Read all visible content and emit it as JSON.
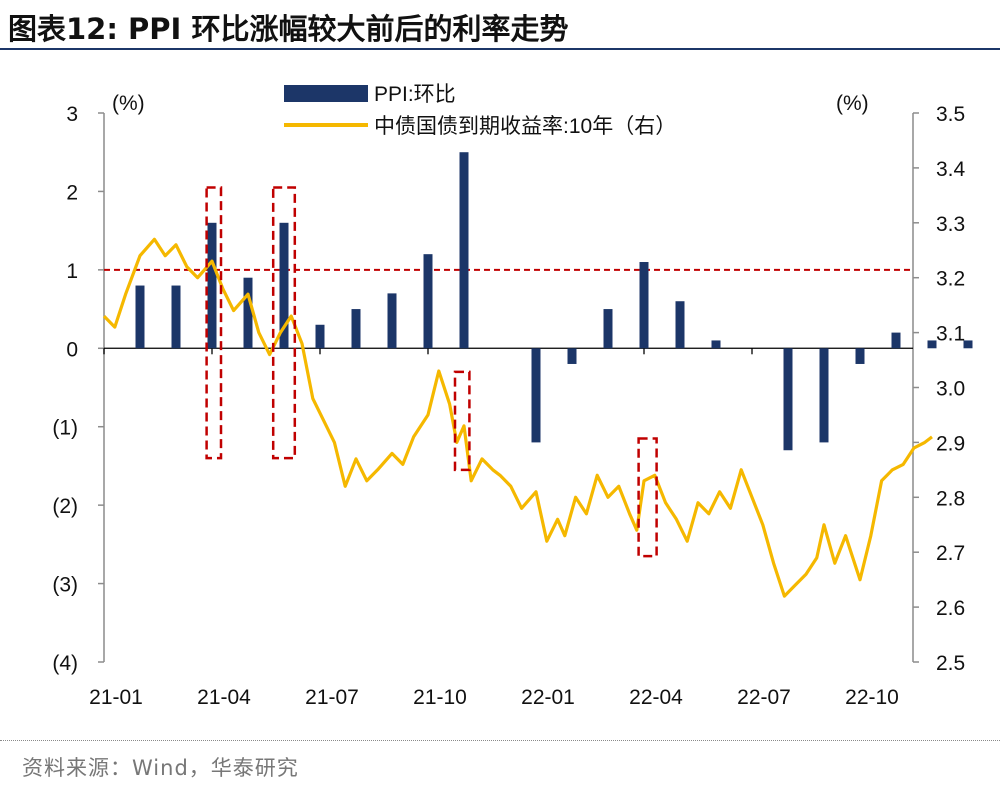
{
  "title": "图表12:  PPI 环比涨幅较大前后的利率走势",
  "source": "资料来源：Wind，华泰研究",
  "colors": {
    "bar": "#1c3668",
    "line": "#f5b800",
    "reference_line": "#c00000",
    "highlight_box": "#c00000",
    "axis": "#8c8c8c",
    "text": "#111111"
  },
  "chart_data": {
    "type": "bar+line",
    "left_axis": {
      "unit": "(%)",
      "ylim": [
        -4,
        3
      ],
      "ticks": [
        3,
        2,
        1,
        0,
        -1,
        -2,
        -3,
        -4
      ],
      "tick_labels": [
        "3",
        "2",
        "1",
        "0",
        "(1)",
        "(2)",
        "(3)",
        "(4)"
      ]
    },
    "right_axis": {
      "unit": "(%)",
      "ylim": [
        2.5,
        3.5
      ],
      "ticks": [
        3.5,
        3.4,
        3.3,
        3.2,
        3.1,
        3.0,
        2.9,
        2.8,
        2.7,
        2.6,
        2.5
      ],
      "tick_labels": [
        "3.5",
        "3.4",
        "3.3",
        "3.2",
        "3.1",
        "3.0",
        "2.9",
        "2.8",
        "2.7",
        "2.6",
        "2.5"
      ]
    },
    "x_ticks": [
      "21-01",
      "21-04",
      "21-07",
      "21-10",
      "22-01",
      "22-04",
      "22-07",
      "22-10"
    ],
    "x_tick_month_index": [
      0,
      3,
      6,
      9,
      12,
      15,
      18,
      21
    ],
    "legend": [
      "PPI:环比",
      "中债国债到期收益率:10年（右）"
    ],
    "series": [
      {
        "name": "PPI:环比",
        "type": "bar",
        "axis": "left",
        "months": [
          "21-01",
          "21-02",
          "21-03",
          "21-04",
          "21-05",
          "21-06",
          "21-07",
          "21-08",
          "21-09",
          "21-10",
          "21-11",
          "21-12",
          "22-01",
          "22-02",
          "22-03",
          "22-04",
          "22-05",
          "22-06",
          "22-07",
          "22-08",
          "22-09",
          "22-10",
          "22-11",
          "22-12"
        ],
        "values": [
          0.8,
          0.8,
          1.6,
          0.9,
          1.6,
          0.3,
          0.5,
          0.7,
          1.2,
          2.5,
          0.0,
          -1.2,
          -0.2,
          0.5,
          1.1,
          0.6,
          0.1,
          0.0,
          -1.3,
          -1.2,
          -0.2,
          0.2,
          0.1,
          0.1
        ]
      },
      {
        "name": "中债国债到期收益率:10年（右）",
        "type": "line",
        "axis": "right",
        "x_month": [
          0,
          0.3,
          0.6,
          1.0,
          1.4,
          1.7,
          2.0,
          2.3,
          2.6,
          3.0,
          3.3,
          3.6,
          4.0,
          4.3,
          4.6,
          4.9,
          5.2,
          5.5,
          5.8,
          6.1,
          6.4,
          6.7,
          7.0,
          7.3,
          7.6,
          8.0,
          8.3,
          8.6,
          9.0,
          9.3,
          9.6,
          9.8,
          10.0,
          10.2,
          10.5,
          10.8,
          11.0,
          11.3,
          11.6,
          12.0,
          12.3,
          12.6,
          12.8,
          13.1,
          13.4,
          13.7,
          14.0,
          14.3,
          14.6,
          14.8,
          15.0,
          15.3,
          15.6,
          15.9,
          16.2,
          16.5,
          16.8,
          17.1,
          17.4,
          17.7,
          18.0,
          18.3,
          18.6,
          18.9,
          19.2,
          19.5,
          19.8,
          20.0,
          20.3,
          20.6,
          21.0,
          21.3,
          21.6,
          21.9,
          22.2,
          22.5,
          22.8,
          23.0
        ],
        "values": [
          3.13,
          3.11,
          3.17,
          3.24,
          3.27,
          3.24,
          3.26,
          3.22,
          3.2,
          3.23,
          3.18,
          3.14,
          3.17,
          3.1,
          3.06,
          3.1,
          3.13,
          3.08,
          2.98,
          2.94,
          2.9,
          2.82,
          2.87,
          2.83,
          2.85,
          2.88,
          2.86,
          2.91,
          2.95,
          3.03,
          2.97,
          2.9,
          2.93,
          2.83,
          2.87,
          2.85,
          2.84,
          2.82,
          2.78,
          2.81,
          2.72,
          2.76,
          2.73,
          2.8,
          2.77,
          2.84,
          2.8,
          2.82,
          2.77,
          2.74,
          2.83,
          2.84,
          2.79,
          2.76,
          2.72,
          2.79,
          2.77,
          2.81,
          2.78,
          2.85,
          2.8,
          2.75,
          2.68,
          2.62,
          2.64,
          2.66,
          2.69,
          2.75,
          2.68,
          2.73,
          2.65,
          2.73,
          2.83,
          2.85,
          2.86,
          2.89,
          2.9,
          2.91
        ]
      }
    ],
    "reference_line": {
      "axis": "left",
      "value": 1.0,
      "style": "dashed"
    },
    "highlight_boxes": [
      {
        "months": [
          2.85,
          3.25
        ],
        "axis": "left",
        "range": [
          -1.4,
          2.05
        ]
      },
      {
        "months": [
          4.7,
          5.3
        ],
        "axis": "left",
        "range": [
          -1.4,
          2.05
        ]
      },
      {
        "months": [
          9.75,
          10.15
        ],
        "axis": "left",
        "range": [
          -1.55,
          -0.3
        ]
      },
      {
        "months": [
          14.85,
          15.35
        ],
        "axis": "left",
        "range": [
          -2.65,
          -1.15
        ]
      }
    ]
  }
}
